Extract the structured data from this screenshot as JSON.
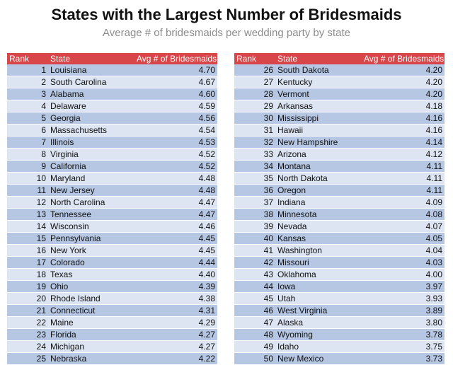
{
  "chart_data": {
    "type": "table",
    "title": "States with the Largest Number of Bridesmaids",
    "subtitle": "Average # of bridesmaids per wedding party by state",
    "columns": [
      "Rank",
      "State",
      "Avg # of Bridesmaids"
    ],
    "rows": [
      {
        "rank": "1",
        "state": "Louisiana",
        "avg": "4.70"
      },
      {
        "rank": "2",
        "state": "South Carolina",
        "avg": "4.67"
      },
      {
        "rank": "3",
        "state": "Alabama",
        "avg": "4.60"
      },
      {
        "rank": "4",
        "state": "Delaware",
        "avg": "4.59"
      },
      {
        "rank": "5",
        "state": "Georgia",
        "avg": "4.56"
      },
      {
        "rank": "6",
        "state": "Massachusetts",
        "avg": "4.54"
      },
      {
        "rank": "7",
        "state": "Illinois",
        "avg": "4.53"
      },
      {
        "rank": "8",
        "state": "Virginia",
        "avg": "4.52"
      },
      {
        "rank": "9",
        "state": "California",
        "avg": "4.52"
      },
      {
        "rank": "10",
        "state": "Maryland",
        "avg": "4.48"
      },
      {
        "rank": "11",
        "state": "New Jersey",
        "avg": "4.48"
      },
      {
        "rank": "12",
        "state": "North Carolina",
        "avg": "4.47"
      },
      {
        "rank": "13",
        "state": "Tennessee",
        "avg": "4.47"
      },
      {
        "rank": "14",
        "state": "Wisconsin",
        "avg": "4.46"
      },
      {
        "rank": "15",
        "state": "Pennsylvania",
        "avg": "4.45"
      },
      {
        "rank": "16",
        "state": "New York",
        "avg": "4.45"
      },
      {
        "rank": "17",
        "state": "Colorado",
        "avg": "4.44"
      },
      {
        "rank": "18",
        "state": "Texas",
        "avg": "4.40"
      },
      {
        "rank": "19",
        "state": "Ohio",
        "avg": "4.39"
      },
      {
        "rank": "20",
        "state": "Rhode Island",
        "avg": "4.38"
      },
      {
        "rank": "21",
        "state": "Connecticut",
        "avg": "4.31"
      },
      {
        "rank": "22",
        "state": "Maine",
        "avg": "4.29"
      },
      {
        "rank": "23",
        "state": "Florida",
        "avg": "4.27"
      },
      {
        "rank": "24",
        "state": "Michigan",
        "avg": "4.27"
      },
      {
        "rank": "25",
        "state": "Nebraska",
        "avg": "4.22"
      },
      {
        "rank": "26",
        "state": "South Dakota",
        "avg": "4.20"
      },
      {
        "rank": "27",
        "state": "Kentucky",
        "avg": "4.20"
      },
      {
        "rank": "28",
        "state": "Vermont",
        "avg": "4.20"
      },
      {
        "rank": "29",
        "state": "Arkansas",
        "avg": "4.18"
      },
      {
        "rank": "30",
        "state": "Mississippi",
        "avg": "4.16"
      },
      {
        "rank": "31",
        "state": "Hawaii",
        "avg": "4.16"
      },
      {
        "rank": "32",
        "state": "New Hampshire",
        "avg": "4.14"
      },
      {
        "rank": "33",
        "state": "Arizona",
        "avg": "4.12"
      },
      {
        "rank": "34",
        "state": "Montana",
        "avg": "4.11"
      },
      {
        "rank": "35",
        "state": "North Dakota",
        "avg": "4.11"
      },
      {
        "rank": "36",
        "state": "Oregon",
        "avg": "4.11"
      },
      {
        "rank": "37",
        "state": "Indiana",
        "avg": "4.09"
      },
      {
        "rank": "38",
        "state": "Minnesota",
        "avg": "4.08"
      },
      {
        "rank": "39",
        "state": "Nevada",
        "avg": "4.07"
      },
      {
        "rank": "40",
        "state": "Kansas",
        "avg": "4.05"
      },
      {
        "rank": "41",
        "state": "Washington",
        "avg": "4.04"
      },
      {
        "rank": "42",
        "state": "Missouri",
        "avg": "4.03"
      },
      {
        "rank": "43",
        "state": "Oklahoma",
        "avg": "4.00"
      },
      {
        "rank": "44",
        "state": "Iowa",
        "avg": "3.97"
      },
      {
        "rank": "45",
        "state": "Utah",
        "avg": "3.93"
      },
      {
        "rank": "46",
        "state": "West Virginia",
        "avg": "3.89"
      },
      {
        "rank": "47",
        "state": "Alaska",
        "avg": "3.80"
      },
      {
        "rank": "48",
        "state": "Wyoming",
        "avg": "3.78"
      },
      {
        "rank": "49",
        "state": "Idaho",
        "avg": "3.75"
      },
      {
        "rank": "50",
        "state": "New Mexico",
        "avg": "3.73"
      }
    ],
    "colors": {
      "header": "#d8464a",
      "row_dark": "#b6c7e4",
      "row_light": "#dde5f3"
    }
  }
}
